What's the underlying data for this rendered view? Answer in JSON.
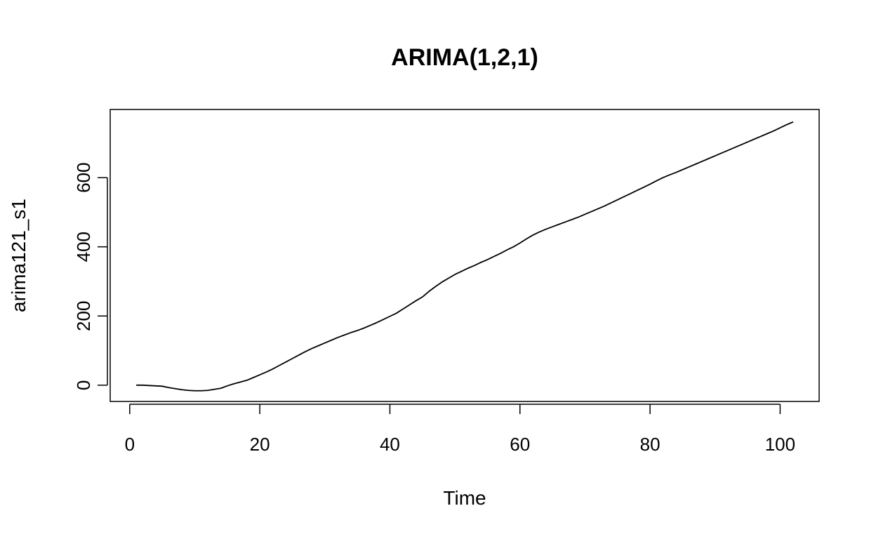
{
  "chart_data": {
    "type": "line",
    "title": "ARIMA(1,2,1)",
    "xlabel": "Time",
    "ylabel": "arima121_s1",
    "xlim": [
      -3,
      106
    ],
    "ylim": [
      -47,
      797
    ],
    "x_ticks": [
      0,
      20,
      40,
      60,
      80,
      100
    ],
    "y_ticks": [
      0,
      200,
      400,
      600
    ],
    "x_tick_labels": [
      "0",
      "20",
      "40",
      "60",
      "80",
      "100"
    ],
    "y_tick_labels": [
      "0",
      "200",
      "400",
      "600"
    ],
    "grid": false,
    "series": [
      {
        "x": [
          1,
          2,
          3,
          4,
          5,
          6,
          7,
          8,
          9,
          10,
          11,
          12,
          13,
          14,
          15,
          16,
          17,
          18,
          19,
          20,
          21,
          22,
          23,
          24,
          25,
          26,
          27,
          28,
          29,
          30,
          31,
          32,
          33,
          34,
          35,
          36,
          37,
          38,
          39,
          40,
          41,
          42,
          43,
          44,
          45,
          46,
          47,
          48,
          49,
          50,
          51,
          52,
          53,
          54,
          55,
          56,
          57,
          58,
          59,
          60,
          61,
          62,
          63,
          64,
          65,
          66,
          67,
          68,
          69,
          70,
          71,
          72,
          73,
          74,
          75,
          76,
          77,
          78,
          79,
          80,
          81,
          82,
          83,
          84,
          85,
          86,
          87,
          88,
          89,
          90,
          91,
          92,
          93,
          94,
          95,
          96,
          97,
          98,
          99,
          100,
          101,
          102
        ],
        "values": [
          0,
          0,
          -1,
          -2,
          -3,
          -7,
          -10,
          -13,
          -15,
          -16,
          -16,
          -15,
          -12,
          -9,
          -2,
          4,
          9,
          14,
          22,
          30,
          38,
          47,
          57,
          67,
          77,
          87,
          97,
          106,
          114,
          122,
          130,
          138,
          145,
          152,
          158,
          165,
          173,
          181,
          190,
          199,
          208,
          220,
          232,
          244,
          255,
          271,
          285,
          298,
          309,
          320,
          329,
          338,
          346,
          355,
          363,
          372,
          381,
          391,
          400,
          411,
          423,
          434,
          443,
          451,
          458,
          465,
          472,
          479,
          486,
          494,
          502,
          510,
          518,
          527,
          536,
          545,
          554,
          563,
          572,
          581,
          591,
          600,
          608,
          615,
          623,
          631,
          639,
          647,
          655,
          663,
          671,
          679,
          687,
          695,
          703,
          711,
          719,
          727,
          735,
          744,
          753,
          761
        ]
      }
    ]
  }
}
